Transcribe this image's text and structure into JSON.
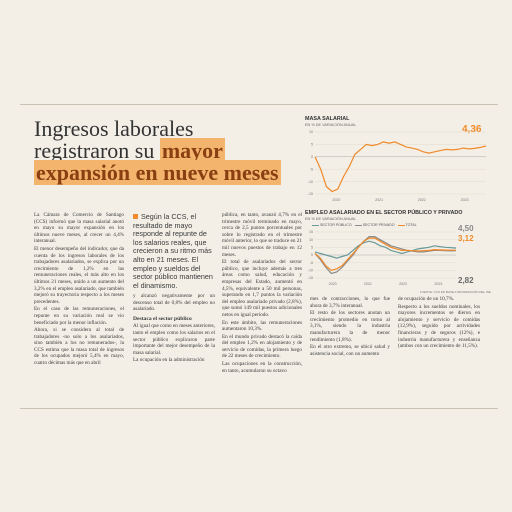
{
  "headline": {
    "line1": "Ingresos laborales",
    "line2_prefix": "registraron su ",
    "line2_highlight": "mayor",
    "line3_highlight": "expansión en nueve meses"
  },
  "body": {
    "col1": [
      "La Cámara de Comercio de Santiago (CCS) informó que la masa salarial anotó en mayo su mayor expansión en los últimos nueve meses, al crecer un 4,4% interanual.",
      "El menor desempeño del indicador, que da cuenta de los ingresos laborales de los trabajadores asalariados, se explica por un crecimiento de 1,2% en las remuneraciones reales, el más alto en los últimos 21 meses, unido a un aumento del 3,2% en el empleo asalariado, que también mejoró su trayectoria respecto a los meses precedentes.",
      "En el caso de las remuneraciones, el repunte en su variación real se vio beneficiado por la menor inflación.",
      "Ahora, si se considera al total de trabajadores -no solo a los asalariados, sino también a los no remunerados-, la CCS estima que la masa total de ingresos de los ocupados mejoró 5,4% en mayo, cuatro décimas más que en abril"
    ],
    "col2a": [
      "y alcanzó negativamente por un descenso total de 0,8% del empleo no asalariado."
    ],
    "col2_subhead": "Destaca el sector público",
    "col2b": [
      "Al igual que como en meses anteriores, tanto el empleo como los salarios en el sector público explicaron parte importante del mejor desempeño de la masa salarial.",
      "La ocupación en la administración"
    ],
    "col3": [
      "pública, en tanto, avanzó 4,7% en el trimestre móvil terminado en mayo, cerca de 2,5 puntos porcentuales por sobre lo registrado en el trimestre móvil anterior, lo que se traduce en 21 mil nuevos puestos de trabajo en 12 meses.",
      "El total de asalariados del sector público, que incluye además a tres áreas como salud, educación y empresas del Estado, aumentó en 4,5%, equivalente a 50 mil personas, superando en 1,7 puntos la variación del empleo asalariado privado (2,8%), que sumó 149 mil puestos adicionales netos en igual periodo.",
      "En este ámbito, las remuneraciones aumentaron 10,3%.",
      "En el mundo privado destacó la caída del empleo 1,2% en alojamiento y de servicio de comidas, la primera luego de 22 meses de crecimiento.",
      "Las ocupaciones en la construcción, en tanto, acumularon su octavo"
    ],
    "col4": [
      "mes de contracciones, lo que fue ahora de 3,7% interanual.",
      "El resto de los sectores anotan un crecimiento promedio en torno al 3,1%, siendo la industria manufacturera la de menor rendimiento (1,8%).",
      "En el otro extremo, se ubicó salud y asistencia social, con un aumento"
    ],
    "col5": [
      "de ocupación de un 10,7%.",
      "Respecto a los sueldos nominales, los mayores incrementos se dieron en alojamiento y servicio de comidas (12,9%), seguido por actividades financieras y de seguros (12%), e industria manufacturera y enseñanza (ambos con un crecimiento de 11,5%)."
    ]
  },
  "callout": "Según la CCS, el resultado de mayo responde al repunte de los salarios reales, que crecieron a su ritmo más alto en 21 meses. El empleo y sueldos del sector público mantienen el dinamismo.",
  "chart1": {
    "title": "MASA SALARIAL",
    "subtitle": "EN % DE VARIACIÓN ANUAL",
    "callout_value": "4,36",
    "y_ticks": [
      "10",
      "5",
      "0",
      "-5",
      "-10",
      "-15"
    ],
    "year_labels": [
      "2020",
      "2021",
      "2022",
      "2023"
    ]
  },
  "chart2": {
    "title": "EMPLEO ASALARIADO EN EL SECTOR PÚBLICO Y PRIVADO",
    "subtitle": "EN % DE VARIACIÓN ANUAL",
    "legend": [
      "SECTOR PÚBLICO",
      "SECTOR PRIVADO",
      "TOTAL"
    ],
    "values": [
      "4,50",
      "3,12",
      "2,82"
    ],
    "y_ticks": [
      "15",
      "10",
      "5",
      "0",
      "-5",
      "-10",
      "-15"
    ],
    "year_labels": [
      "2020",
      "2021",
      "2022",
      "2023"
    ],
    "source": "FUENTE: CCS EN BASE A INFORMACIÓN DEL INE"
  },
  "colors": {
    "orange": "#f08a2b",
    "teal": "#6a9a9a",
    "gray": "#8a8a8a",
    "highlight": "#f3b56d"
  },
  "chart_data": [
    {
      "type": "line",
      "title": "MASA SALARIAL",
      "subtitle": "EN % DE VARIACIÓN ANUAL",
      "ylim": [
        -15,
        10
      ],
      "series": [
        {
          "values": [
            0,
            -5,
            -12,
            -14,
            -13,
            -8,
            -4,
            1,
            3,
            5,
            4.5,
            5,
            6,
            5.5,
            6,
            5,
            4,
            3.5,
            3,
            2,
            1.5,
            2,
            2.5,
            3,
            2.8,
            3,
            3.5,
            3.2,
            3.4,
            3.8,
            4.36
          ]
        }
      ]
    },
    {
      "type": "line",
      "title": "EMPLEO ASALARIADO EN EL SECTOR PÚBLICO Y PRIVADO",
      "subtitle": "EN % DE VARIACIÓN ANUAL",
      "ylim": [
        -15,
        15
      ],
      "series": [
        {
          "name": "SECTOR PÚBLICO",
          "values": [
            2,
            1,
            0,
            -1,
            -2,
            -1,
            0,
            3,
            6,
            8,
            9,
            8,
            6,
            5,
            3,
            2,
            1,
            2,
            3,
            4,
            4.5,
            5,
            6,
            5.5,
            5,
            4.8,
            4.5
          ]
        },
        {
          "name": "SECTOR PRIVADO",
          "values": [
            1,
            -3,
            -8,
            -12,
            -11,
            -8,
            -4,
            0,
            5,
            9,
            12,
            12,
            10,
            8,
            6,
            5,
            4,
            3,
            2.5,
            2,
            2,
            2.5,
            3,
            3,
            2.8,
            2.7,
            2.82
          ]
        },
        {
          "name": "TOTAL",
          "values": [
            1,
            -2,
            -7,
            -10,
            -9,
            -7,
            -3,
            1,
            5,
            9,
            11,
            11,
            9,
            7,
            5,
            4,
            3,
            3,
            2.8,
            2.6,
            2.8,
            3,
            3.5,
            3.3,
            3.2,
            3.1,
            3.12
          ]
        }
      ]
    }
  ]
}
